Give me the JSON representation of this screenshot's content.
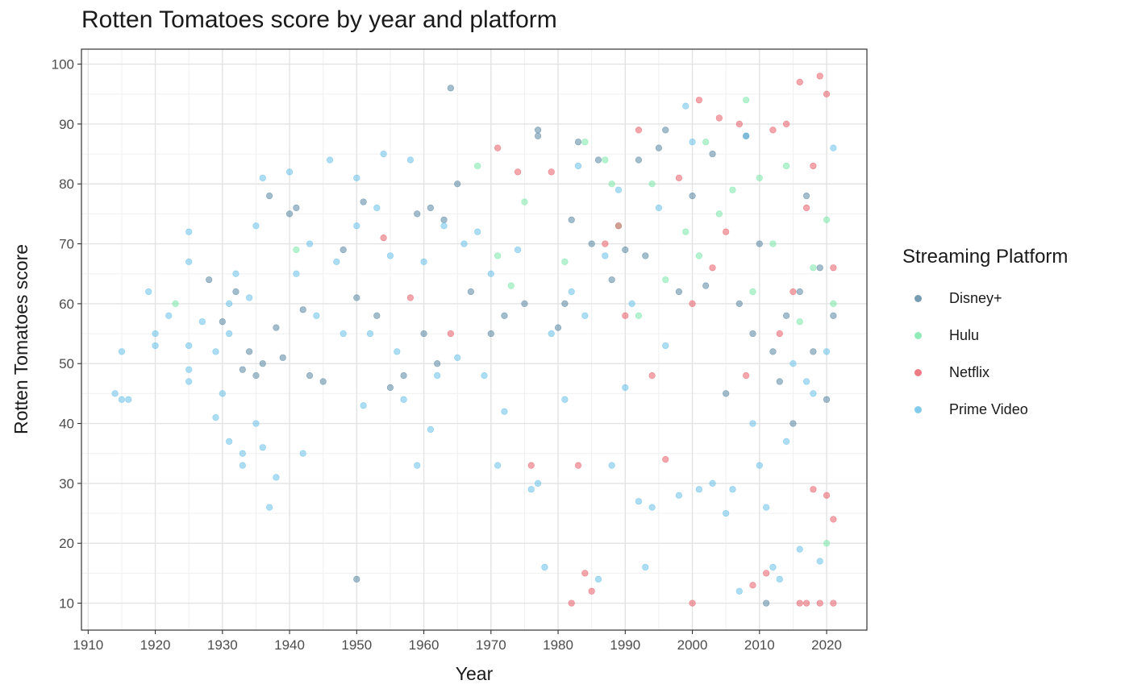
{
  "chart_data": {
    "type": "scatter",
    "title": "Rotten Tomatoes score by year and platform",
    "xlabel": "Year",
    "ylabel": "Rotten Tomatoes score",
    "xlim": [
      1909,
      2026
    ],
    "ylim": [
      5.5,
      102.5
    ],
    "x_ticks": [
      1910,
      1920,
      1930,
      1940,
      1950,
      1960,
      1970,
      1980,
      1990,
      2000,
      2010,
      2020
    ],
    "y_ticks": [
      10,
      20,
      30,
      40,
      50,
      60,
      70,
      80,
      90,
      100
    ],
    "grid": true,
    "legend": {
      "title": "Streaming Platform",
      "position": "right"
    },
    "series": [
      {
        "name": "Disney+",
        "color": "#4a7c99",
        "points": [
          [
            1928,
            64
          ],
          [
            1930,
            57
          ],
          [
            1932,
            62
          ],
          [
            1933,
            49
          ],
          [
            1934,
            52
          ],
          [
            1935,
            48
          ],
          [
            1936,
            50
          ],
          [
            1937,
            78
          ],
          [
            1938,
            56
          ],
          [
            1939,
            51
          ],
          [
            1940,
            75
          ],
          [
            1941,
            76
          ],
          [
            1942,
            59
          ],
          [
            1943,
            48
          ],
          [
            1945,
            47
          ],
          [
            1948,
            69
          ],
          [
            1950,
            14
          ],
          [
            1950,
            61
          ],
          [
            1951,
            77
          ],
          [
            1953,
            58
          ],
          [
            1955,
            46
          ],
          [
            1957,
            48
          ],
          [
            1959,
            75
          ],
          [
            1960,
            55
          ],
          [
            1961,
            76
          ],
          [
            1962,
            50
          ],
          [
            1963,
            74
          ],
          [
            1964,
            96
          ],
          [
            1965,
            80
          ],
          [
            1967,
            62
          ],
          [
            1970,
            55
          ],
          [
            1972,
            58
          ],
          [
            1975,
            60
          ],
          [
            1977,
            89
          ],
          [
            1977,
            88
          ],
          [
            1980,
            56
          ],
          [
            1981,
            60
          ],
          [
            1982,
            74
          ],
          [
            1983,
            87
          ],
          [
            1985,
            70
          ],
          [
            1986,
            84
          ],
          [
            1988,
            64
          ],
          [
            1990,
            69
          ],
          [
            1992,
            84
          ],
          [
            1993,
            68
          ],
          [
            1995,
            86
          ],
          [
            1996,
            89
          ],
          [
            1998,
            62
          ],
          [
            2000,
            78
          ],
          [
            2002,
            63
          ],
          [
            2003,
            85
          ],
          [
            2005,
            45
          ],
          [
            2007,
            60
          ],
          [
            2008,
            88
          ],
          [
            2009,
            55
          ],
          [
            2010,
            70
          ],
          [
            2011,
            10
          ],
          [
            2012,
            52
          ],
          [
            2013,
            47
          ],
          [
            2014,
            58
          ],
          [
            2015,
            40
          ],
          [
            2016,
            62
          ],
          [
            2017,
            78
          ],
          [
            2018,
            52
          ],
          [
            2019,
            66
          ],
          [
            2020,
            44
          ],
          [
            2021,
            58
          ]
        ]
      },
      {
        "name": "Hulu",
        "color": "#6ee6a0",
        "points": [
          [
            1923,
            60
          ],
          [
            1941,
            69
          ],
          [
            1968,
            83
          ],
          [
            1971,
            68
          ],
          [
            1973,
            63
          ],
          [
            1975,
            77
          ],
          [
            1981,
            67
          ],
          [
            1984,
            87
          ],
          [
            1987,
            84
          ],
          [
            1988,
            80
          ],
          [
            1989,
            73
          ],
          [
            1992,
            58
          ],
          [
            1994,
            80
          ],
          [
            1996,
            64
          ],
          [
            1999,
            72
          ],
          [
            2001,
            68
          ],
          [
            2002,
            87
          ],
          [
            2004,
            75
          ],
          [
            2006,
            79
          ],
          [
            2008,
            94
          ],
          [
            2009,
            62
          ],
          [
            2010,
            81
          ],
          [
            2012,
            70
          ],
          [
            2014,
            83
          ],
          [
            2016,
            57
          ],
          [
            2018,
            66
          ],
          [
            2020,
            20
          ],
          [
            2020,
            74
          ],
          [
            2021,
            60
          ]
        ]
      },
      {
        "name": "Netflix",
        "color": "#e8505b",
        "points": [
          [
            1954,
            71
          ],
          [
            1958,
            61
          ],
          [
            1964,
            55
          ],
          [
            1971,
            86
          ],
          [
            1974,
            82
          ],
          [
            1976,
            33
          ],
          [
            1979,
            82
          ],
          [
            1982,
            10
          ],
          [
            1983,
            33
          ],
          [
            1984,
            15
          ],
          [
            1985,
            12
          ],
          [
            1987,
            70
          ],
          [
            1989,
            73
          ],
          [
            1990,
            58
          ],
          [
            1992,
            89
          ],
          [
            1994,
            48
          ],
          [
            1996,
            34
          ],
          [
            1998,
            81
          ],
          [
            2000,
            10
          ],
          [
            2000,
            60
          ],
          [
            2001,
            94
          ],
          [
            2003,
            66
          ],
          [
            2004,
            91
          ],
          [
            2005,
            72
          ],
          [
            2007,
            90
          ],
          [
            2008,
            48
          ],
          [
            2009,
            13
          ],
          [
            2011,
            15
          ],
          [
            2012,
            89
          ],
          [
            2013,
            55
          ],
          [
            2014,
            90
          ],
          [
            2015,
            62
          ],
          [
            2016,
            97
          ],
          [
            2016,
            10
          ],
          [
            2017,
            76
          ],
          [
            2017,
            10
          ],
          [
            2018,
            83
          ],
          [
            2018,
            29
          ],
          [
            2019,
            98
          ],
          [
            2019,
            10
          ],
          [
            2020,
            95
          ],
          [
            2020,
            28
          ],
          [
            2021,
            24
          ],
          [
            2021,
            66
          ],
          [
            2021,
            10
          ]
        ]
      },
      {
        "name": "Prime Video",
        "color": "#5bbbe8",
        "points": [
          [
            1914,
            45
          ],
          [
            1915,
            52
          ],
          [
            1915,
            44
          ],
          [
            1916,
            44
          ],
          [
            1919,
            62
          ],
          [
            1920,
            55
          ],
          [
            1920,
            53
          ],
          [
            1922,
            58
          ],
          [
            1925,
            72
          ],
          [
            1925,
            67
          ],
          [
            1925,
            53
          ],
          [
            1925,
            49
          ],
          [
            1925,
            47
          ],
          [
            1927,
            57
          ],
          [
            1929,
            52
          ],
          [
            1929,
            41
          ],
          [
            1930,
            45
          ],
          [
            1931,
            60
          ],
          [
            1931,
            55
          ],
          [
            1931,
            37
          ],
          [
            1932,
            65
          ],
          [
            1933,
            35
          ],
          [
            1933,
            33
          ],
          [
            1934,
            61
          ],
          [
            1935,
            73
          ],
          [
            1935,
            40
          ],
          [
            1936,
            81
          ],
          [
            1936,
            36
          ],
          [
            1937,
            26
          ],
          [
            1938,
            31
          ],
          [
            1940,
            82
          ],
          [
            1941,
            65
          ],
          [
            1942,
            35
          ],
          [
            1943,
            70
          ],
          [
            1944,
            58
          ],
          [
            1946,
            84
          ],
          [
            1947,
            67
          ],
          [
            1948,
            55
          ],
          [
            1950,
            81
          ],
          [
            1950,
            73
          ],
          [
            1951,
            43
          ],
          [
            1952,
            55
          ],
          [
            1953,
            76
          ],
          [
            1954,
            85
          ],
          [
            1955,
            68
          ],
          [
            1956,
            52
          ],
          [
            1957,
            44
          ],
          [
            1958,
            84
          ],
          [
            1959,
            33
          ],
          [
            1960,
            67
          ],
          [
            1961,
            39
          ],
          [
            1962,
            48
          ],
          [
            1963,
            73
          ],
          [
            1965,
            51
          ],
          [
            1966,
            70
          ],
          [
            1968,
            72
          ],
          [
            1969,
            48
          ],
          [
            1970,
            65
          ],
          [
            1971,
            33
          ],
          [
            1972,
            42
          ],
          [
            1974,
            69
          ],
          [
            1976,
            29
          ],
          [
            1977,
            30
          ],
          [
            1978,
            16
          ],
          [
            1979,
            55
          ],
          [
            1981,
            44
          ],
          [
            1982,
            62
          ],
          [
            1983,
            83
          ],
          [
            1984,
            58
          ],
          [
            1986,
            14
          ],
          [
            1987,
            68
          ],
          [
            1988,
            33
          ],
          [
            1989,
            79
          ],
          [
            1990,
            46
          ],
          [
            1991,
            60
          ],
          [
            1992,
            27
          ],
          [
            1993,
            16
          ],
          [
            1994,
            26
          ],
          [
            1995,
            76
          ],
          [
            1996,
            53
          ],
          [
            1998,
            28
          ],
          [
            1999,
            93
          ],
          [
            2000,
            87
          ],
          [
            2001,
            29
          ],
          [
            2003,
            30
          ],
          [
            2005,
            25
          ],
          [
            2006,
            29
          ],
          [
            2007,
            12
          ],
          [
            2008,
            88
          ],
          [
            2009,
            40
          ],
          [
            2010,
            33
          ],
          [
            2011,
            26
          ],
          [
            2012,
            16
          ],
          [
            2013,
            14
          ],
          [
            2014,
            37
          ],
          [
            2015,
            50
          ],
          [
            2016,
            19
          ],
          [
            2017,
            47
          ],
          [
            2018,
            45
          ],
          [
            2019,
            17
          ],
          [
            2020,
            52
          ],
          [
            2021,
            86
          ]
        ]
      }
    ]
  }
}
